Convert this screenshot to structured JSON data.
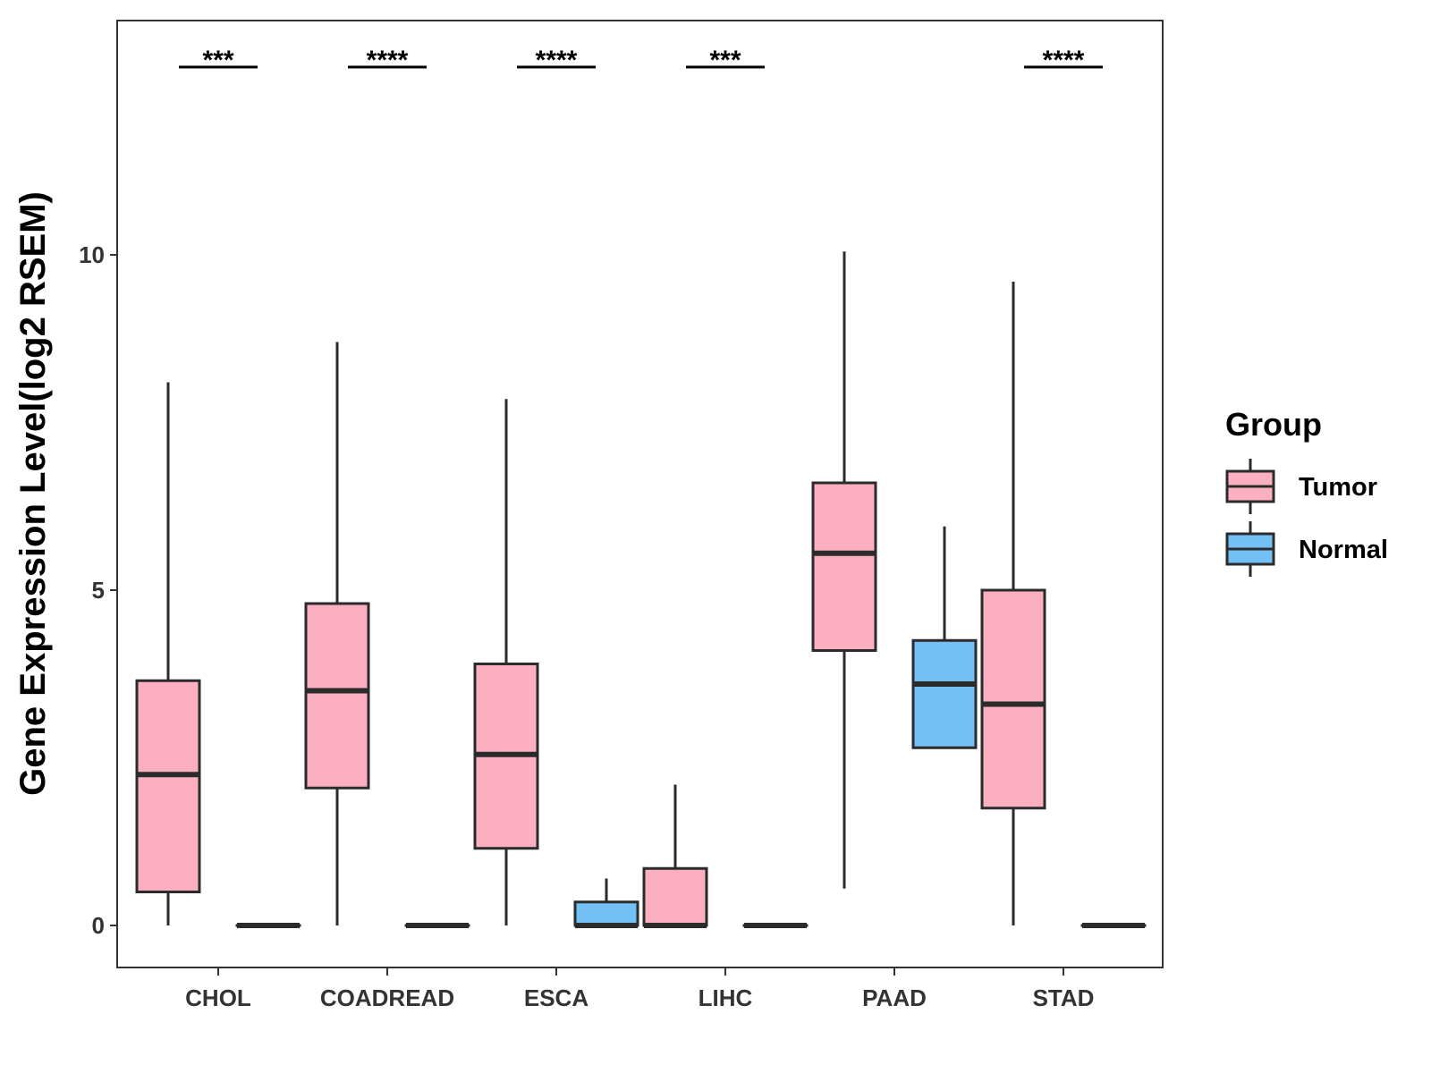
{
  "chart_data": {
    "type": "boxplot",
    "title": "",
    "xlabel": "",
    "ylabel": "Gene Expression Level(log2 RSEM)",
    "ylim": [
      -0.65,
      13.4
    ],
    "yticks": [
      0,
      5,
      10
    ],
    "grid": false,
    "categories": [
      "CHOL",
      "COADREAD",
      "ESCA",
      "LIHC",
      "PAAD",
      "STAD"
    ],
    "significance": [
      "***",
      "****",
      "****",
      "***",
      "",
      "****"
    ],
    "legend": {
      "title": "Group",
      "position": "right",
      "entries": [
        {
          "name": "Tumor",
          "color": "#fbafc1"
        },
        {
          "name": "Normal",
          "color": "#73c0f6"
        }
      ]
    },
    "series": [
      {
        "name": "Tumor",
        "color": "#fbafc1",
        "boxes": [
          {
            "category": "CHOL",
            "min": 0,
            "q1": 0.5,
            "median": 2.25,
            "q3": 3.65,
            "max": 8.1
          },
          {
            "category": "COADREAD",
            "min": 0,
            "q1": 2.05,
            "median": 3.5,
            "q3": 4.8,
            "max": 8.7
          },
          {
            "category": "ESCA",
            "min": 0,
            "q1": 1.15,
            "median": 2.55,
            "q3": 3.9,
            "max": 7.85
          },
          {
            "category": "LIHC",
            "min": 0,
            "q1": 0,
            "median": 0,
            "q3": 0.85,
            "max": 2.1
          },
          {
            "category": "PAAD",
            "min": 0.55,
            "q1": 4.1,
            "median": 5.55,
            "q3": 6.6,
            "max": 10.05
          },
          {
            "category": "STAD",
            "min": 0,
            "q1": 1.75,
            "median": 3.3,
            "q3": 5.0,
            "max": 9.6
          }
        ]
      },
      {
        "name": "Normal",
        "color": "#73c0f6",
        "boxes": [
          {
            "category": "CHOL",
            "min": 0,
            "q1": 0,
            "median": 0,
            "q3": 0,
            "max": 0
          },
          {
            "category": "COADREAD",
            "min": 0,
            "q1": 0,
            "median": 0,
            "q3": 0,
            "max": 0
          },
          {
            "category": "ESCA",
            "min": 0,
            "q1": 0,
            "median": 0,
            "q3": 0.35,
            "max": 0.7
          },
          {
            "category": "LIHC",
            "min": 0,
            "q1": 0,
            "median": 0,
            "q3": 0,
            "max": 0
          },
          {
            "category": "PAAD",
            "min": 2.65,
            "q1": 2.65,
            "median": 3.6,
            "q3": 4.25,
            "max": 5.95
          },
          {
            "category": "STAD",
            "min": 0,
            "q1": 0,
            "median": 0,
            "q3": 0,
            "max": 0
          }
        ]
      }
    ]
  }
}
